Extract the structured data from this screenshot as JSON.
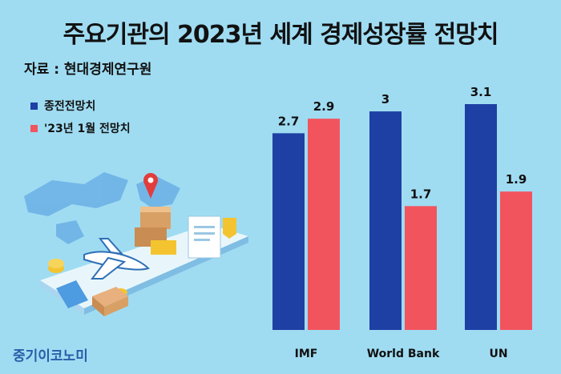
{
  "header": {
    "title": "주요기관의 2023년 세계 경제성장률 전망치",
    "source": "자료 : 현대경제연구원"
  },
  "brand": {
    "name": "중기이코노미"
  },
  "colors": {
    "series_previous": "#1e3fa4",
    "series_jan": "#f2545e",
    "background": "#9fdcf2"
  },
  "chart_data": {
    "type": "bar",
    "categories": [
      "IMF",
      "World Bank",
      "UN"
    ],
    "series": [
      {
        "name": "종전전망치",
        "values": [
          2.7,
          3,
          3.1
        ],
        "labels": [
          "2.7",
          "3",
          "3.1"
        ],
        "color": "#1e3fa4"
      },
      {
        "name": "'23년 1월 전망치",
        "values": [
          2.9,
          1.7,
          1.9
        ],
        "labels": [
          "2.9",
          "1.7",
          "1.9"
        ],
        "color": "#f2545e"
      }
    ],
    "title": "주요기관의 2023년 세계 경제성장률 전망치",
    "xlabel": "",
    "ylabel": "",
    "ylim": [
      0,
      3.1
    ],
    "grid": false,
    "legend": "top-left"
  }
}
